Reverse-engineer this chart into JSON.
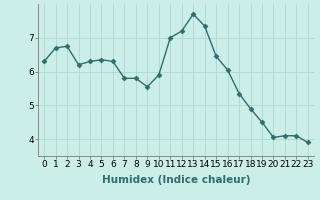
{
  "x": [
    0,
    1,
    2,
    3,
    4,
    5,
    6,
    7,
    8,
    9,
    10,
    11,
    12,
    13,
    14,
    15,
    16,
    17,
    18,
    19,
    20,
    21,
    22,
    23
  ],
  "y": [
    6.3,
    6.7,
    6.75,
    6.2,
    6.3,
    6.35,
    6.3,
    5.8,
    5.8,
    5.55,
    5.9,
    7.0,
    7.2,
    7.7,
    7.35,
    6.45,
    6.05,
    5.35,
    4.9,
    4.5,
    4.05,
    4.1,
    4.1,
    3.9
  ],
  "line_color": "#2d6e6e",
  "marker": "D",
  "marker_size": 2.5,
  "bg_color": "#cceee8",
  "grid_color": "#b0d8d0",
  "xlabel": "Humidex (Indice chaleur)",
  "ylim": [
    3.5,
    8.0
  ],
  "xlim": [
    -0.5,
    23.5
  ],
  "yticks": [
    4,
    5,
    6,
    7
  ],
  "xticks": [
    0,
    1,
    2,
    3,
    4,
    5,
    6,
    7,
    8,
    9,
    10,
    11,
    12,
    13,
    14,
    15,
    16,
    17,
    18,
    19,
    20,
    21,
    22,
    23
  ],
  "xlabel_fontsize": 7.5,
  "tick_fontsize": 6.5,
  "line_width": 1.0
}
